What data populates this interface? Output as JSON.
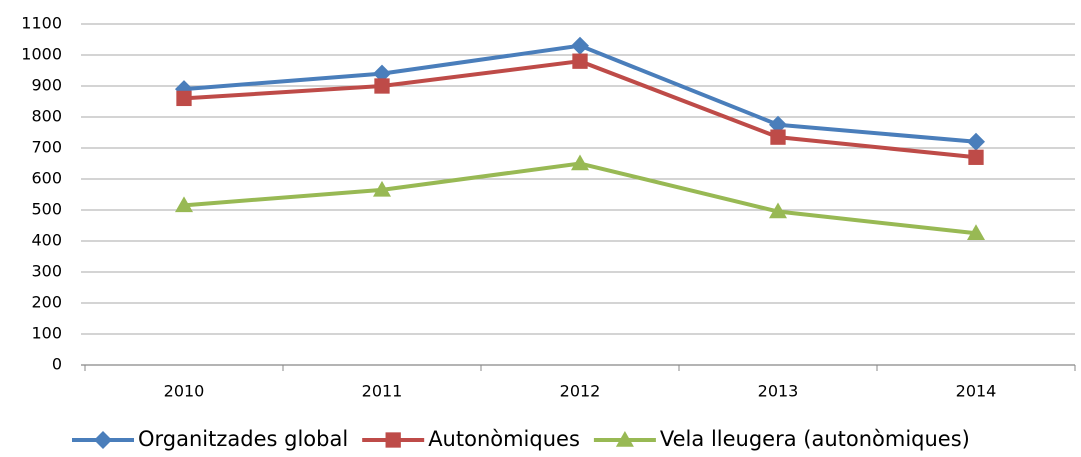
{
  "chart_data": {
    "type": "line",
    "categories": [
      "2010",
      "2011",
      "2012",
      "2013",
      "2014"
    ],
    "series": [
      {
        "name": "Organitzades global",
        "color": "#4a7ebb",
        "marker": "diamond",
        "values": [
          890,
          940,
          1030,
          775,
          720
        ]
      },
      {
        "name": "Autonòmiques",
        "color": "#be4b48",
        "marker": "square",
        "values": [
          860,
          900,
          980,
          735,
          670
        ]
      },
      {
        "name": "Vela lleugera (autonòmiques)",
        "color": "#98b954",
        "marker": "triangle",
        "values": [
          515,
          565,
          650,
          495,
          425
        ]
      }
    ],
    "ylim": [
      0,
      1100
    ],
    "yticks": [
      0,
      100,
      200,
      300,
      400,
      500,
      600,
      700,
      800,
      900,
      1000,
      1100
    ],
    "grid": true,
    "legend": "bottom"
  }
}
